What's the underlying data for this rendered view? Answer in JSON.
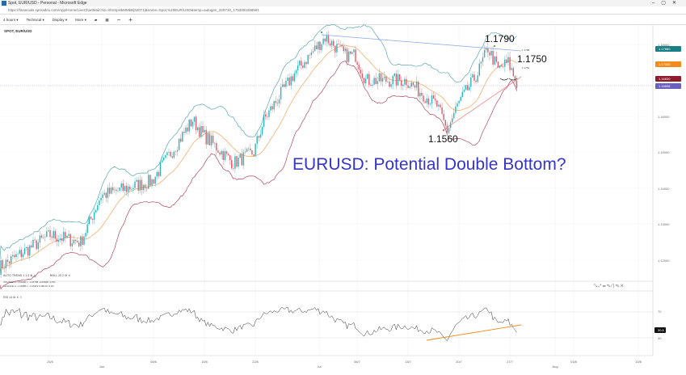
{
  "window": {
    "title": "Spot, EUR/USD - Personal - Microsoft Edge",
    "url": "https://financials.spreadex.com/App/Home/LiveChartMain?id=XfmSpHkMMkB|32071|&name=Spot,%20EUR/USD&temp=autogen_320710_1753091068591"
  },
  "toolbar": {
    "interval": "4 hours ▾",
    "technical": "Technical ▾",
    "display": "Display ▾",
    "more": "More ▾"
  },
  "chart": {
    "symbol": "SPOT, EUR/USD",
    "indicator1": "AUTO TREND 1 1.4 ⚙ ✕",
    "indicator2": "BOLL 20 2 ⚙ ✕",
    "ohlc_row1": "VOLUME  H: 1.16950  L: 1.16768  -0.00638  -0.5%",
    "ohlc_row2": "CHANGE  H: 1.16885  L: 1.16902  0.00191  0.1%",
    "rsi_label": "RSI 14 ⚙ ✕ ⇧",
    "annotations": {
      "high": "1.1790",
      "current": "1.1750",
      "low": "1.1560",
      "headline": "EURUSD: Potential Double Bottom?"
    },
    "price_ticks": [
      "1.18000",
      "1.16000",
      "1.15000",
      "1.14000",
      "1.13000",
      "1.12000"
    ],
    "badges": [
      {
        "value": "1.17880",
        "color": "#1b7f86"
      },
      {
        "value": "1.17505",
        "color": "#f28a1c"
      },
      {
        "value": "1.16830",
        "color": "#8d1c2c"
      },
      {
        "value": "1.16658",
        "color": "#6b5fbf"
      }
    ],
    "rsi_ticks": [
      "70",
      "30"
    ],
    "rsi_badge": "30.6",
    "x_ticks": [
      "25/5",
      "Jun",
      "08/6",
      "15/6",
      "22/6",
      "Jul",
      "06/7",
      "13/7",
      "20/7",
      "27/7",
      "Aug",
      "03/8",
      "10/8"
    ],
    "trend_labels": [
      "1.1788",
      "1.1762"
    ]
  },
  "chart_data": {
    "type": "candlestick",
    "symbol": "EUR/USD",
    "interval": "4 hours",
    "ylim": [
      1.112,
      1.185
    ],
    "colors": {
      "up": "#2bb3b8",
      "down": "#e05a6a",
      "bollinger": "#5aa6b0",
      "lower_band": "#b0485e",
      "ma": "#f5a35a",
      "trend": "#8aa8e0",
      "support": "#f06060",
      "rsi_trend": "#f28a1c"
    },
    "approx_close_path": [
      [
        "2020-05-18",
        1.118
      ],
      [
        "2020-05-25",
        1.127
      ],
      [
        "2020-05-28",
        1.125
      ],
      [
        "2020-06-01",
        1.138
      ],
      [
        "2020-06-08",
        1.142
      ],
      [
        "2020-06-12",
        1.159
      ],
      [
        "2020-06-15",
        1.155
      ],
      [
        "2020-06-18",
        1.147
      ],
      [
        "2020-06-22",
        1.15
      ],
      [
        "2020-06-23",
        1.159
      ],
      [
        "2020-06-26",
        1.172
      ],
      [
        "2020-07-01",
        1.182
      ],
      [
        "2020-07-03",
        1.177
      ],
      [
        "2020-07-06",
        1.177
      ],
      [
        "2020-07-07",
        1.17
      ],
      [
        "2020-07-13",
        1.17
      ],
      [
        "2020-07-16",
        1.163
      ],
      [
        "2020-07-17",
        1.156
      ],
      [
        "2020-07-20",
        1.163
      ],
      [
        "2020-07-22",
        1.172
      ],
      [
        "2020-07-23",
        1.179
      ],
      [
        "2020-07-24",
        1.173
      ],
      [
        "2020-07-27",
        1.175
      ],
      [
        "2020-07-28",
        1.168
      ]
    ]
  }
}
